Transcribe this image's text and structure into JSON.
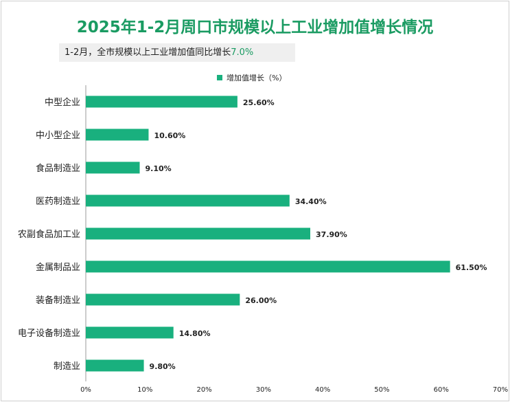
{
  "title": "2025年1-2月周口市规模以上工业增加值增长情况",
  "subtitle": {
    "text": "1-2月，全市规模以上工业增加值同比增长",
    "highlight": "7.0%"
  },
  "colors": {
    "bar": "#19b07e",
    "title": "#1a9b62",
    "axis": "#999999"
  },
  "chart_data": {
    "type": "bar",
    "orientation": "horizontal",
    "categories": [
      "中型企业",
      "中小型企业",
      "食品制造业",
      "医药制造业",
      "农副食品加工业",
      "金属制品业",
      "装备制造业",
      "电子设备制造业",
      "制造业"
    ],
    "series": [
      {
        "name": "增加值增长（%）",
        "values": [
          25.6,
          10.6,
          9.1,
          34.4,
          37.9,
          61.5,
          26.0,
          14.8,
          9.8
        ]
      }
    ],
    "value_labels": [
      "25.60%",
      "10.60%",
      "9.10%",
      "34.40%",
      "37.90%",
      "61.50%",
      "26.00%",
      "14.80%",
      "9.80%"
    ],
    "xlim": [
      0,
      70
    ],
    "xticks": [
      0,
      10,
      20,
      30,
      40,
      50,
      60,
      70
    ],
    "xtick_labels": [
      "0%",
      "10%",
      "20%",
      "30%",
      "40%",
      "50%",
      "60%",
      "70%"
    ],
    "legend_position": "top",
    "grid": false
  }
}
